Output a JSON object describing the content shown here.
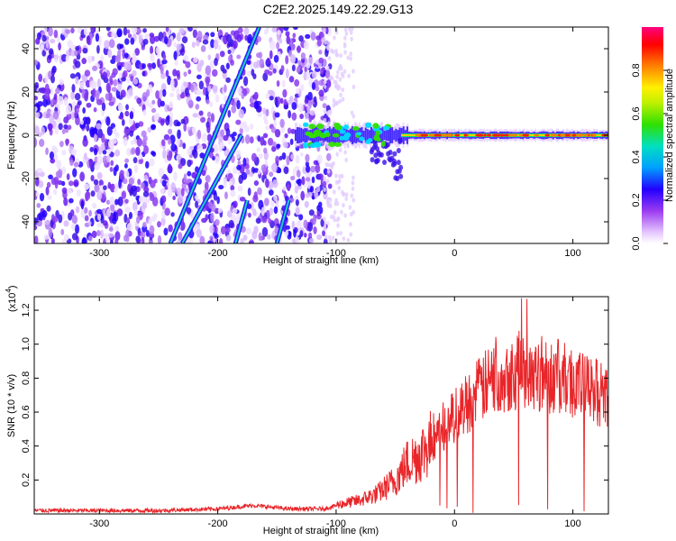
{
  "title": "C2E2.2025.149.22.29.G13",
  "chart_data": [
    {
      "type": "heatmap",
      "xlabel": "Height of straight line (km)",
      "ylabel": "Frequency (Hz)",
      "xlim": [
        -355,
        130
      ],
      "ylim": [
        -50,
        50
      ],
      "xticks": [
        -300,
        -200,
        -100,
        0,
        100
      ],
      "yticks": [
        -40,
        -20,
        0,
        20,
        40
      ],
      "colorbar": {
        "label": "Normalized spectral amplitude",
        "range": [
          0.0,
          1.0
        ],
        "ticks": [
          0.0,
          0.2,
          0.4,
          0.6,
          0.8
        ]
      },
      "features": {
        "noise_region_x": [
          -355,
          -105
        ],
        "signal_band_x": [
          -135,
          130
        ],
        "signal_band_freq": 0,
        "diagonal_lines": [
          {
            "x_start": -240,
            "f_start": -50,
            "x_end": -165,
            "f_end": 50
          },
          {
            "x_start": -230,
            "f_start": -50,
            "x_end": -180,
            "f_end": 0
          },
          {
            "x_start": -185,
            "f_start": -50,
            "x_end": -175,
            "f_end": -30
          },
          {
            "x_start": -150,
            "f_start": -50,
            "x_end": -140,
            "f_end": -30
          }
        ]
      }
    },
    {
      "type": "line",
      "xlabel": "Height of straight line (km)",
      "ylabel": "SNR (10 * v/v)",
      "exponent": "(x10",
      "exponent_power": "4",
      "xlim": [
        -355,
        130
      ],
      "ylim": [
        0,
        1.28
      ],
      "xticks": [
        -300,
        -200,
        -100,
        0,
        100
      ],
      "yticks": [
        0.2,
        0.4,
        0.6,
        0.8,
        1.0,
        1.2
      ],
      "series": [
        {
          "color": "#e8262a",
          "envelope": {
            "x": [
              -355,
              -250,
              -200,
              -170,
              -140,
              -110,
              -95,
              -80,
              -65,
              -50,
              -40,
              -30,
              -20,
              -10,
              0,
              10,
              20,
              30,
              40,
              50,
              60,
              70,
              80,
              90,
              100,
              110,
              120,
              130
            ],
            "y": [
              0.02,
              0.02,
              0.03,
              0.05,
              0.03,
              0.03,
              0.06,
              0.08,
              0.12,
              0.2,
              0.3,
              0.35,
              0.42,
              0.5,
              0.58,
              0.65,
              0.72,
              0.78,
              0.82,
              0.84,
              0.85,
              0.84,
              0.82,
              0.8,
              0.78,
              0.74,
              0.72,
              0.7
            ]
          }
        }
      ]
    }
  ]
}
